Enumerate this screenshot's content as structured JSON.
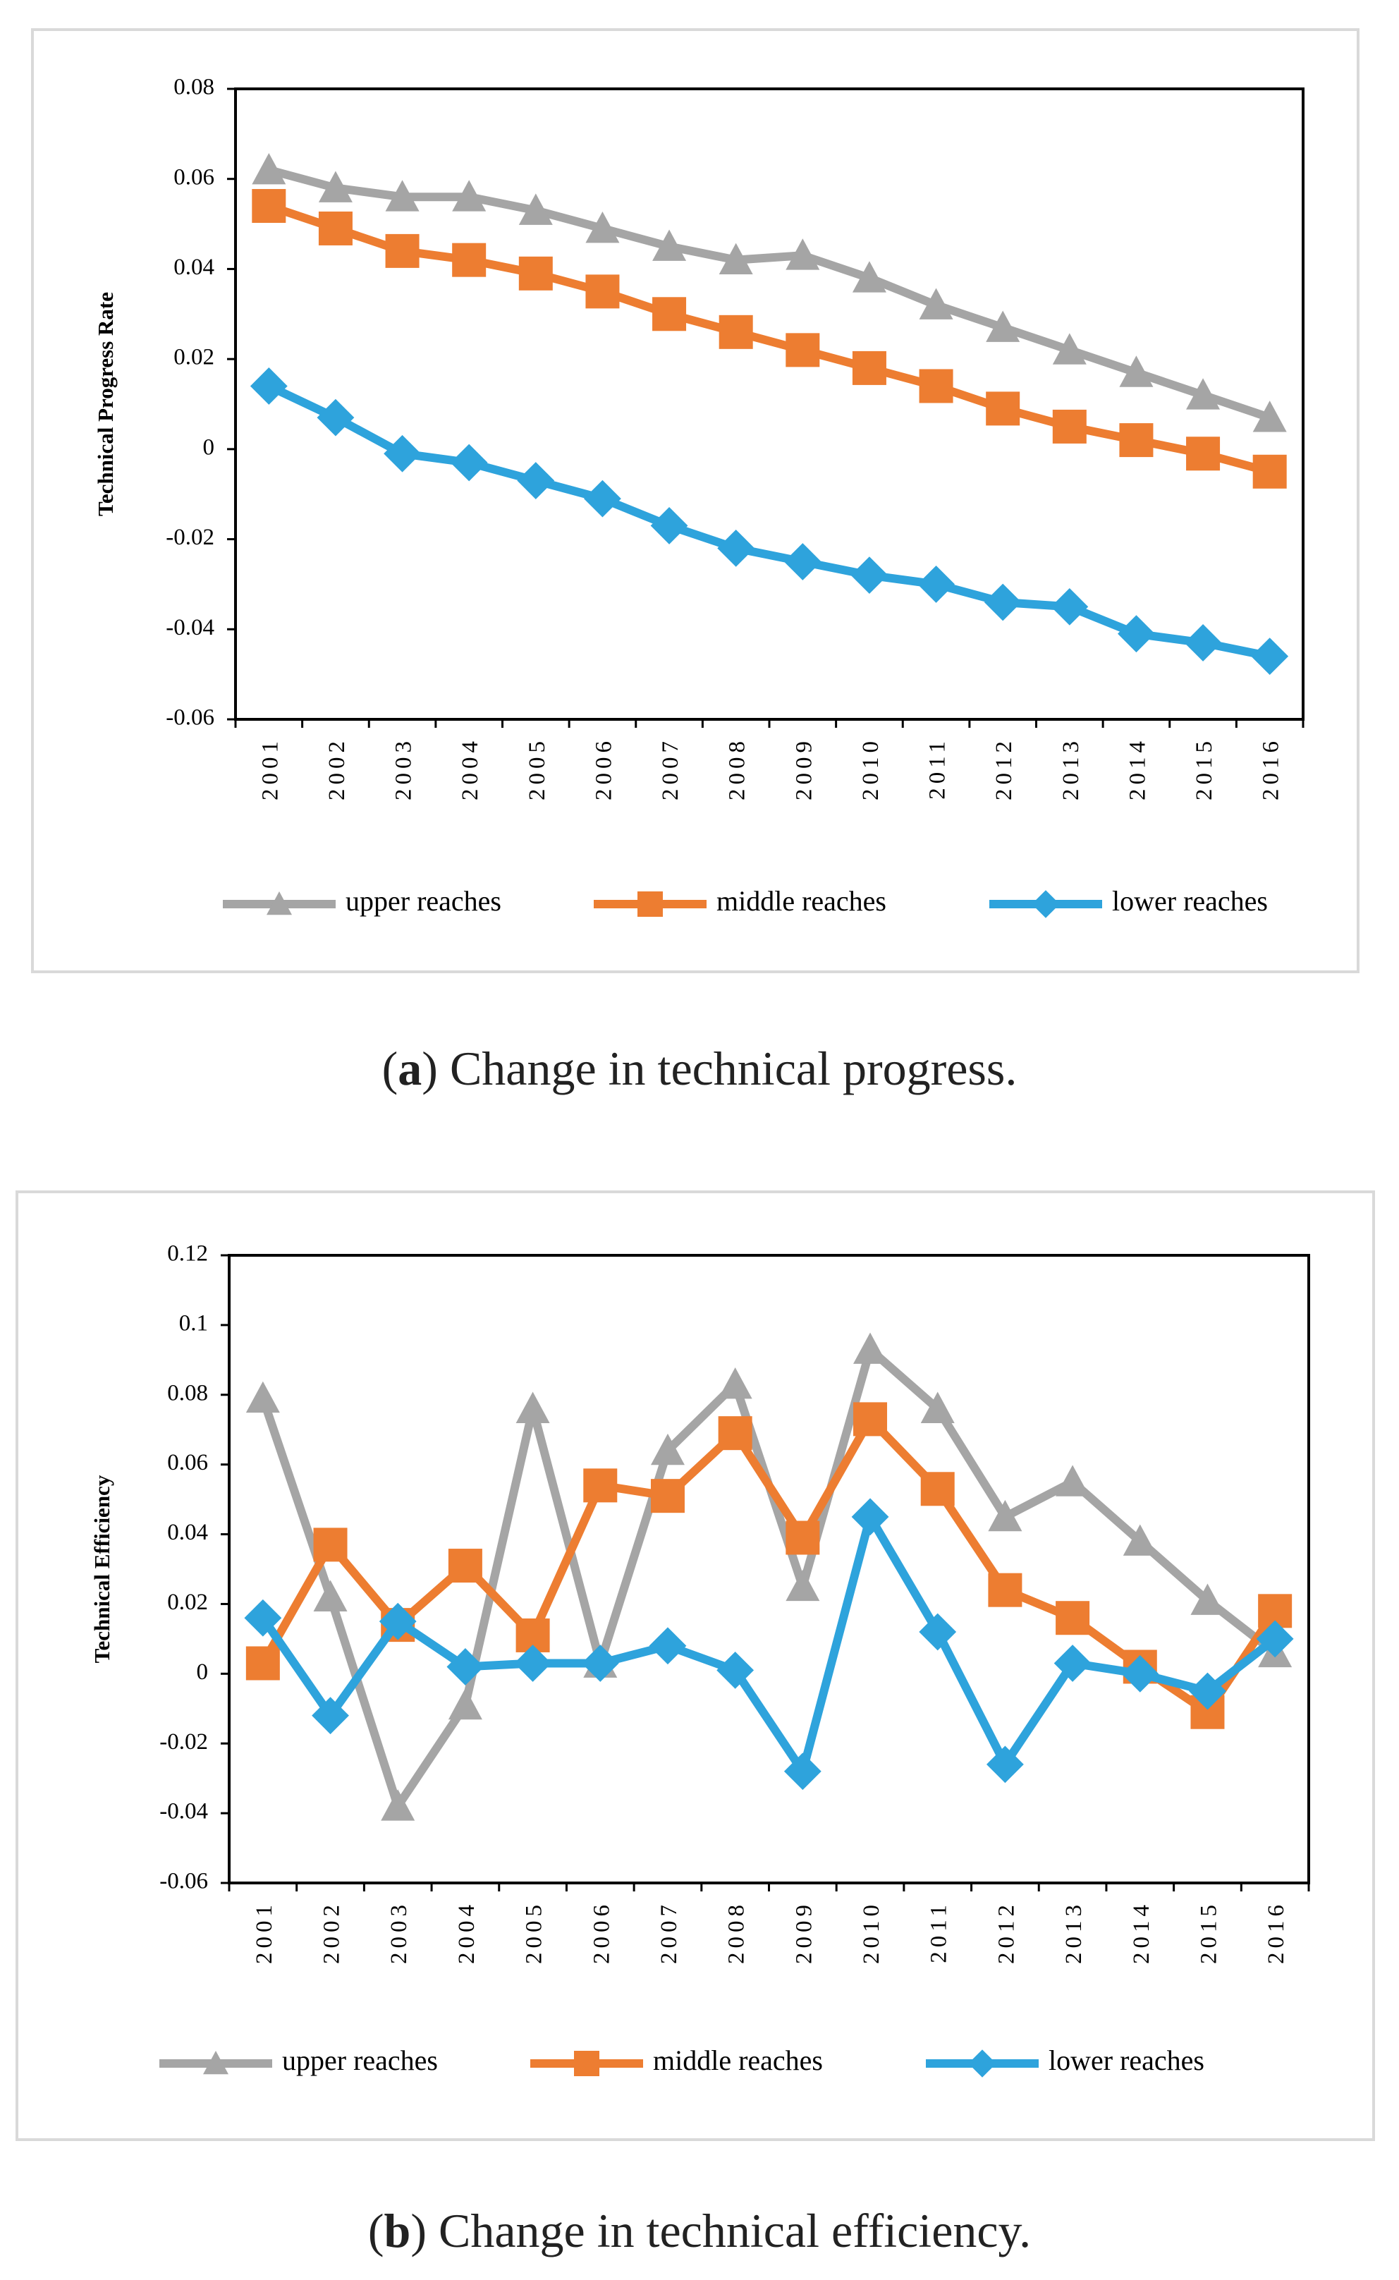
{
  "chart_data": [
    {
      "id": "a",
      "type": "line",
      "title": "",
      "caption_letter": "a",
      "caption_text": ") Change in technical progress.",
      "xlabel": "",
      "ylabel": "Technical Progress Rate",
      "ylim": [
        -0.06,
        0.08
      ],
      "yticks": [
        "0.08",
        "0.06",
        "0.04",
        "0.02",
        "0",
        "-0.02",
        "-0.04",
        "-0.06"
      ],
      "ytick_values": [
        0.08,
        0.06,
        0.04,
        0.02,
        0,
        -0.02,
        -0.04,
        -0.06
      ],
      "categories": [
        "2001",
        "2002",
        "2003",
        "2004",
        "2005",
        "2006",
        "2007",
        "2008",
        "2009",
        "2010",
        "2011",
        "2012",
        "2013",
        "2014",
        "2015",
        "2016"
      ],
      "grid": false,
      "legend_position": "bottom",
      "series": [
        {
          "name": "upper reaches",
          "color": "#a5a5a5",
          "marker": "triangle",
          "values": [
            0.062,
            0.058,
            0.056,
            0.056,
            0.053,
            0.049,
            0.045,
            0.042,
            0.043,
            0.038,
            0.032,
            0.027,
            0.022,
            0.017,
            0.012,
            0.007
          ]
        },
        {
          "name": "middle reaches",
          "color": "#ed7d31",
          "marker": "square",
          "values": [
            0.054,
            0.049,
            0.044,
            0.042,
            0.039,
            0.035,
            0.03,
            0.026,
            0.022,
            0.018,
            0.014,
            0.009,
            0.005,
            0.002,
            -0.001,
            -0.005
          ]
        },
        {
          "name": "lower reaches",
          "color": "#2ea3dc",
          "marker": "diamond",
          "values": [
            0.014,
            0.007,
            -0.001,
            -0.003,
            -0.007,
            -0.011,
            -0.017,
            -0.022,
            -0.025,
            -0.028,
            -0.03,
            -0.034,
            -0.035,
            -0.041,
            -0.043,
            -0.046
          ]
        }
      ]
    },
    {
      "id": "b",
      "type": "line",
      "title": "",
      "caption_letter": "b",
      "caption_text": ") Change in technical efficiency.",
      "xlabel": "",
      "ylabel": "Technical Efficiency",
      "ylim": [
        -0.06,
        0.12
      ],
      "yticks": [
        "0.12",
        "0.1",
        "0.08",
        "0.06",
        "0.04",
        "0.02",
        "0",
        "-0.02",
        "-0.04",
        "-0.06"
      ],
      "ytick_values": [
        0.12,
        0.1,
        0.08,
        0.06,
        0.04,
        0.02,
        0,
        -0.02,
        -0.04,
        -0.06
      ],
      "categories": [
        "2001",
        "2002",
        "2003",
        "2004",
        "2005",
        "2006",
        "2007",
        "2008",
        "2009",
        "2010",
        "2011",
        "2012",
        "2013",
        "2014",
        "2015",
        "2016"
      ],
      "grid": false,
      "legend_position": "bottom",
      "series": [
        {
          "name": "upper reaches",
          "color": "#a5a5a5",
          "marker": "triangle",
          "values": [
            0.079,
            0.022,
            -0.038,
            -0.009,
            0.076,
            0.003,
            0.064,
            0.083,
            0.025,
            0.093,
            0.076,
            0.045,
            0.055,
            0.038,
            0.021,
            0.006
          ]
        },
        {
          "name": "middle reaches",
          "color": "#ed7d31",
          "marker": "square",
          "values": [
            0.003,
            0.037,
            0.014,
            0.031,
            0.011,
            0.054,
            0.051,
            0.069,
            0.039,
            0.073,
            0.053,
            0.024,
            0.016,
            0.002,
            -0.011,
            0.018
          ]
        },
        {
          "name": "lower reaches",
          "color": "#2ea3dc",
          "marker": "diamond",
          "values": [
            0.016,
            -0.012,
            0.015,
            0.002,
            0.003,
            0.003,
            0.008,
            0.001,
            -0.028,
            0.045,
            0.012,
            -0.026,
            0.003,
            0.0,
            -0.005,
            0.01
          ]
        }
      ]
    }
  ]
}
